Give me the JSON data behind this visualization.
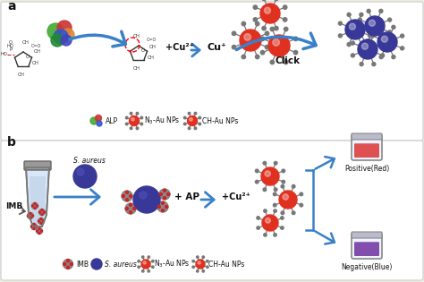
{
  "bg_color": "#f0ece0",
  "white": "#ffffff",
  "panel_a_label": "a",
  "panel_b_label": "b",
  "red_core": "#e03020",
  "blue_core": "#383898",
  "gray_core": "#888888",
  "gray_light": "#aaaaaa",
  "spike_gray": "#777777",
  "red_dot": "#cc2222",
  "arrow_blue": "#3a80c8",
  "text_dark": "#111111",
  "positive_liq": "#dd3333",
  "negative_liq": "#7030a0",
  "cu2plus": "+Cu²⁺",
  "cuplus": "Cu⁺",
  "click_txt": "Click",
  "ap_txt": "+ AP",
  "cu2b_txt": "+Cu²⁺",
  "saureus_txt": "S. aureus",
  "imb_txt": "IMB",
  "pos_txt": "Positive(Red)",
  "neg_txt": "Negative(Blue)",
  "alp_txt": "ALP",
  "n3_txt": "N₃-Au NPs",
  "ch_txt": "CH-Au NPs",
  "imb_leg_txt": "IMB",
  "sa_leg_txt": "S. aureus"
}
